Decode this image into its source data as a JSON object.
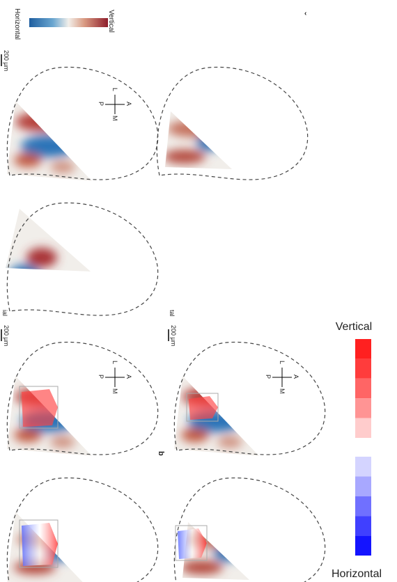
{
  "top_legend": {
    "left_label": "Horizontal",
    "right_label": "Vertical"
  },
  "scale_bar": "200 µm",
  "compass": {
    "lateral": "L",
    "anterior": "A",
    "posterior": "P",
    "medial": "M"
  },
  "fragment_labels": [
    "ial",
    "tal"
  ],
  "panel_label": "b",
  "right_legend": {
    "top_label": "Vertical",
    "bottom_label": "Horizontal"
  }
}
